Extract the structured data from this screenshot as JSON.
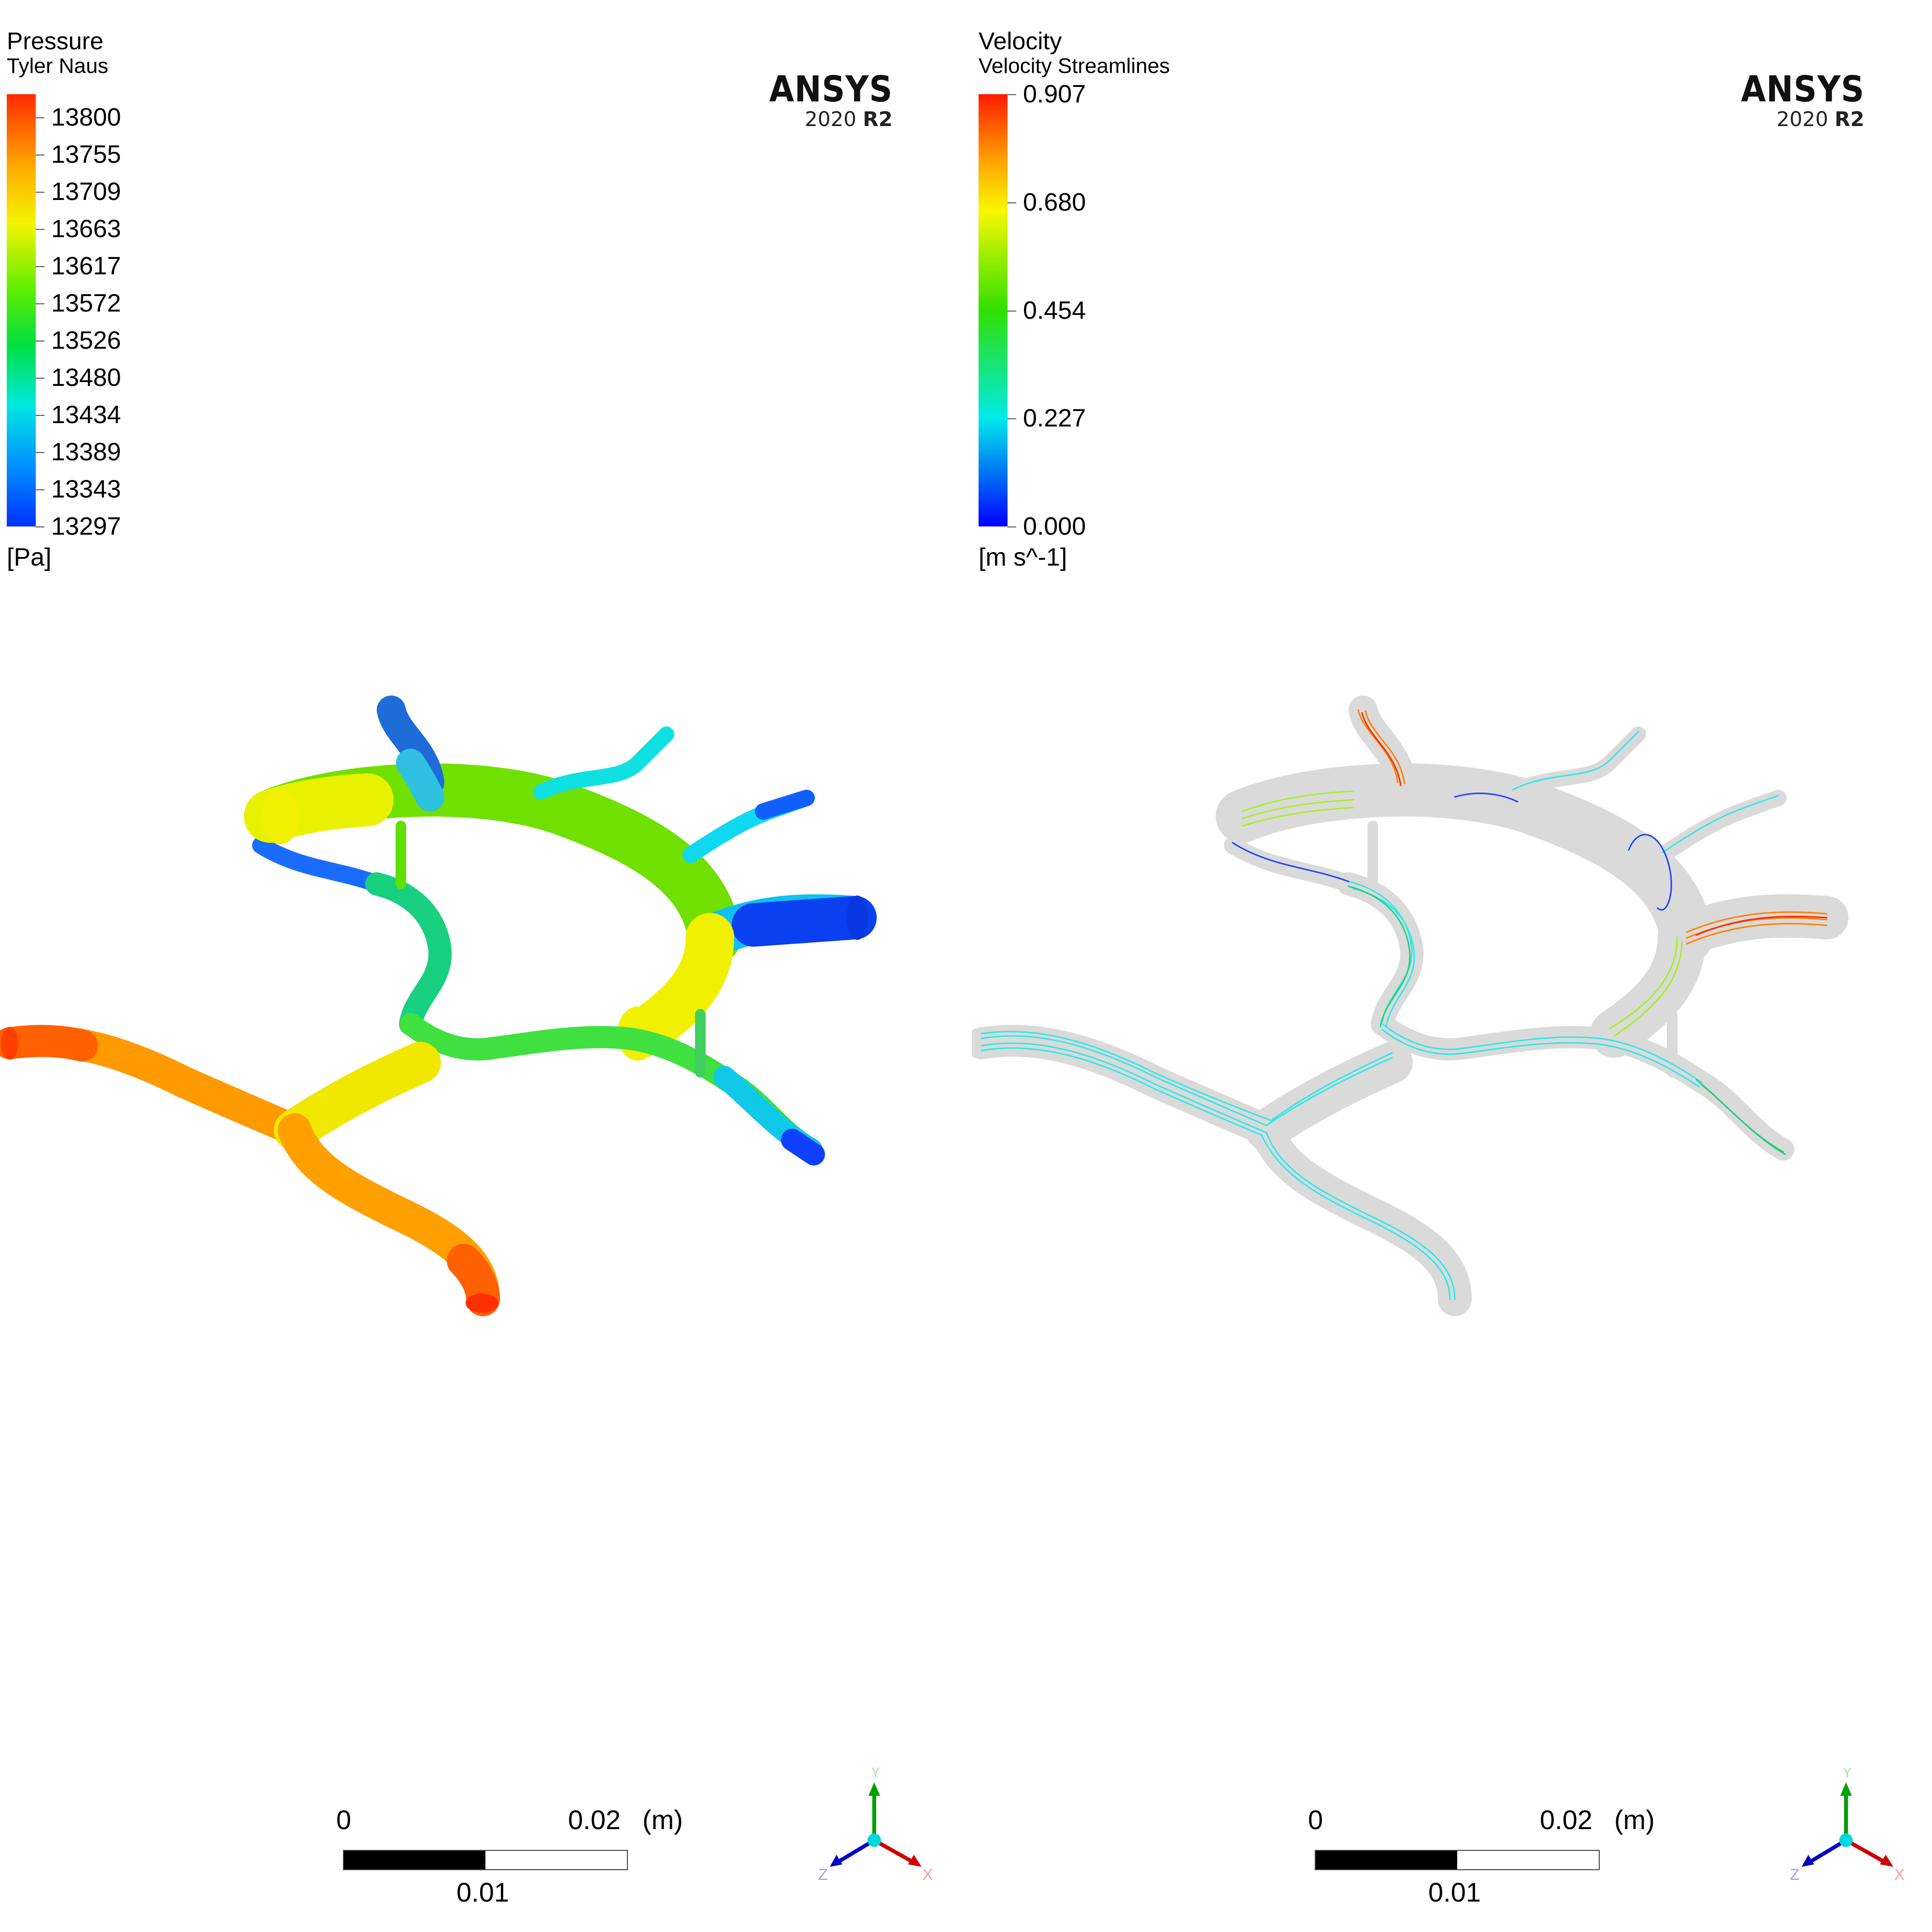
{
  "left_panel": {
    "legend": {
      "title": "Pressure",
      "subtitle": "Tyler Naus",
      "ticks": [
        "13800",
        "13755",
        "13709",
        "13663",
        "13617",
        "13572",
        "13526",
        "13480",
        "13434",
        "13389",
        "13343",
        "13297"
      ],
      "unit": "[Pa]"
    },
    "logo": {
      "name": "ANSYS",
      "version": "2020",
      "release": "R2"
    },
    "scale": {
      "zero": "0",
      "max": "0.02",
      "unit": "(m)",
      "mid": "0.01"
    },
    "triad": {
      "y": "Y",
      "z": "Z",
      "x": "X"
    }
  },
  "right_panel": {
    "legend": {
      "title": "Velocity",
      "subtitle": "Velocity Streamlines",
      "ticks": [
        "0.907",
        "0.680",
        "0.454",
        "0.227",
        "0.000"
      ],
      "unit": "[m s^-1]"
    },
    "logo": {
      "name": "ANSYS",
      "version": "2020",
      "release": "R2"
    },
    "scale": {
      "zero": "0",
      "max": "0.02",
      "unit": "(m)",
      "mid": "0.01"
    },
    "triad": {
      "y": "Y",
      "z": "Z",
      "x": "X"
    }
  },
  "colors": {
    "red": "#ff2a00",
    "orange": "#ff9a00",
    "yellow": "#f2f200",
    "green": "#22e000",
    "cyan": "#10e8e8",
    "blue": "#0033ff",
    "shell": "#d8d8d8"
  }
}
